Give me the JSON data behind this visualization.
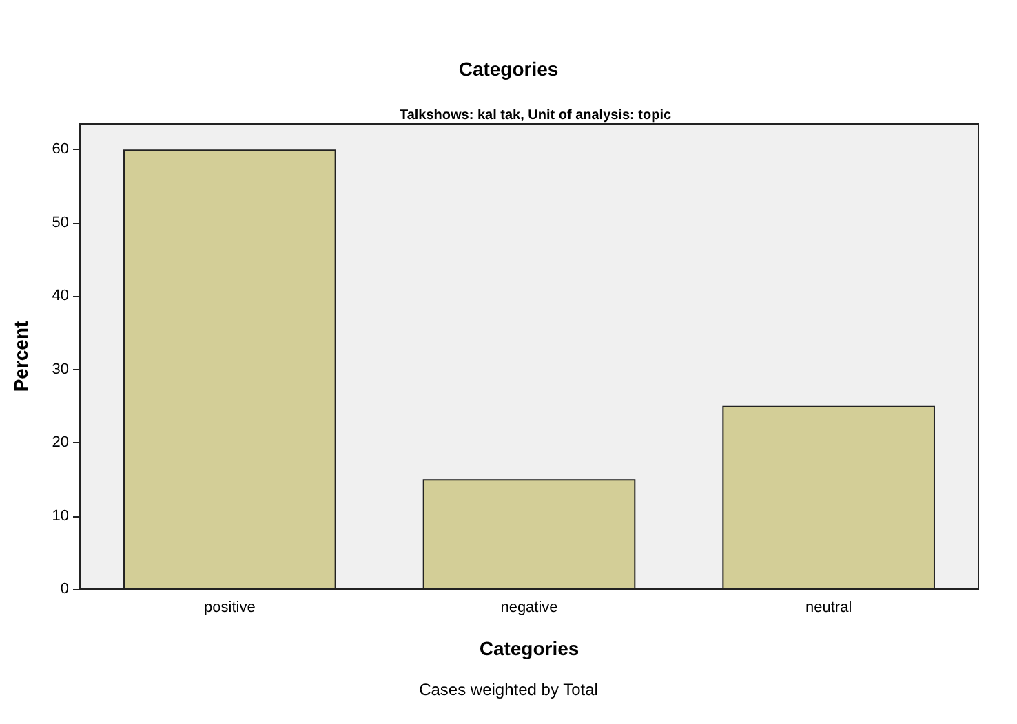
{
  "chart_data": {
    "type": "bar",
    "title": "Categories",
    "subtitle": "Talkshows: kal tak, Unit of analysis: topic",
    "xlabel": "Categories",
    "ylabel": "Percent",
    "categories": [
      "positive",
      "negative",
      "neutral"
    ],
    "values": [
      60,
      15,
      25
    ],
    "color": "#d3ce97",
    "ylim": [
      0,
      63.5
    ],
    "yticks": [
      0,
      10,
      20,
      30,
      40,
      50,
      60
    ],
    "grid": false,
    "annotations": [
      "Cases weighted by Total"
    ]
  }
}
